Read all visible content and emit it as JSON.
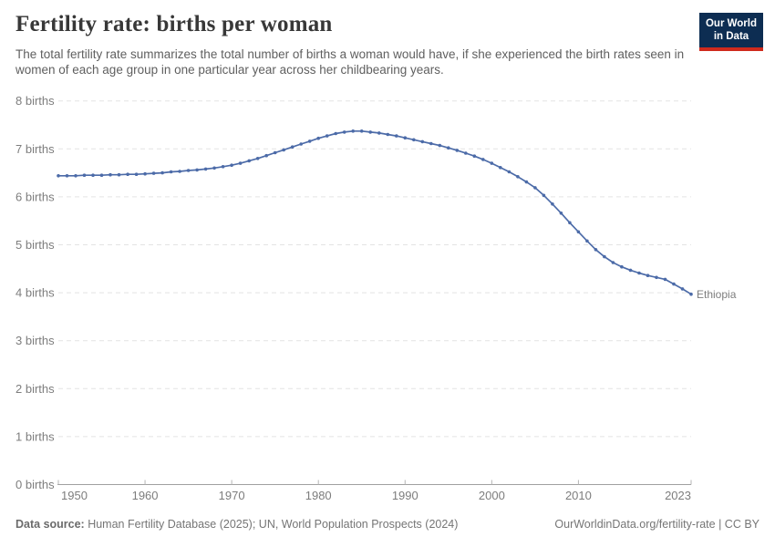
{
  "header": {
    "title": "Fertility rate: births per woman",
    "subtitle": "The total fertility rate summarizes the total number of births a woman would have, if she experienced the birth rates seen in women of each age group in one particular year across her childbearing years."
  },
  "logo": {
    "line1": "Our World",
    "line2": "in Data",
    "bg_color": "#0d2d52",
    "bar_color": "#cf2a1d"
  },
  "chart_data": {
    "type": "line",
    "title": "Fertility rate: births per woman",
    "xlabel": "",
    "ylabel": "",
    "ylim": [
      0,
      8
    ],
    "grid": "dashed-horizontal",
    "legend_position": "end-of-line-label",
    "y_ticks": [
      0,
      1,
      2,
      3,
      4,
      5,
      6,
      7,
      8
    ],
    "y_tick_label_format": "{v} births",
    "x_ticks": [
      1950,
      1960,
      1970,
      1980,
      1990,
      2000,
      2010,
      2023
    ],
    "x": [
      1950,
      1951,
      1952,
      1953,
      1954,
      1955,
      1956,
      1957,
      1958,
      1959,
      1960,
      1961,
      1962,
      1963,
      1964,
      1965,
      1966,
      1967,
      1968,
      1969,
      1970,
      1971,
      1972,
      1973,
      1974,
      1975,
      1976,
      1977,
      1978,
      1979,
      1980,
      1981,
      1982,
      1983,
      1984,
      1985,
      1986,
      1987,
      1988,
      1989,
      1990,
      1991,
      1992,
      1993,
      1994,
      1995,
      1996,
      1997,
      1998,
      1999,
      2000,
      2001,
      2002,
      2003,
      2004,
      2005,
      2006,
      2007,
      2008,
      2009,
      2010,
      2011,
      2012,
      2013,
      2014,
      2015,
      2016,
      2017,
      2018,
      2019,
      2020,
      2021,
      2022,
      2023
    ],
    "series": [
      {
        "name": "Ethiopia",
        "color": "#4c6ba8",
        "values": [
          6.44,
          6.44,
          6.44,
          6.45,
          6.45,
          6.45,
          6.46,
          6.46,
          6.47,
          6.47,
          6.48,
          6.49,
          6.5,
          6.52,
          6.53,
          6.55,
          6.56,
          6.58,
          6.6,
          6.63,
          6.66,
          6.7,
          6.75,
          6.8,
          6.86,
          6.92,
          6.98,
          7.04,
          7.1,
          7.16,
          7.22,
          7.27,
          7.32,
          7.35,
          7.37,
          7.37,
          7.35,
          7.33,
          7.3,
          7.27,
          7.23,
          7.19,
          7.15,
          7.11,
          7.07,
          7.02,
          6.97,
          6.91,
          6.85,
          6.78,
          6.7,
          6.61,
          6.52,
          6.42,
          6.31,
          6.19,
          6.03,
          5.85,
          5.66,
          5.46,
          5.27,
          5.08,
          4.9,
          4.75,
          4.63,
          4.54,
          4.47,
          4.41,
          4.36,
          4.32,
          4.28,
          4.18,
          4.08,
          3.97
        ]
      }
    ],
    "colors": {
      "gridline": "#e3e3e3",
      "axis_line": "#a0a0a0",
      "tick": "#b5b5b5",
      "tick_label": "#7d7d7d"
    }
  },
  "footer": {
    "data_source_label": "Data source:",
    "data_source_text": " Human Fertility Database (2025); UN, World Population Prospects (2024)",
    "link": "OurWorldinData.org/fertility-rate | CC BY"
  }
}
